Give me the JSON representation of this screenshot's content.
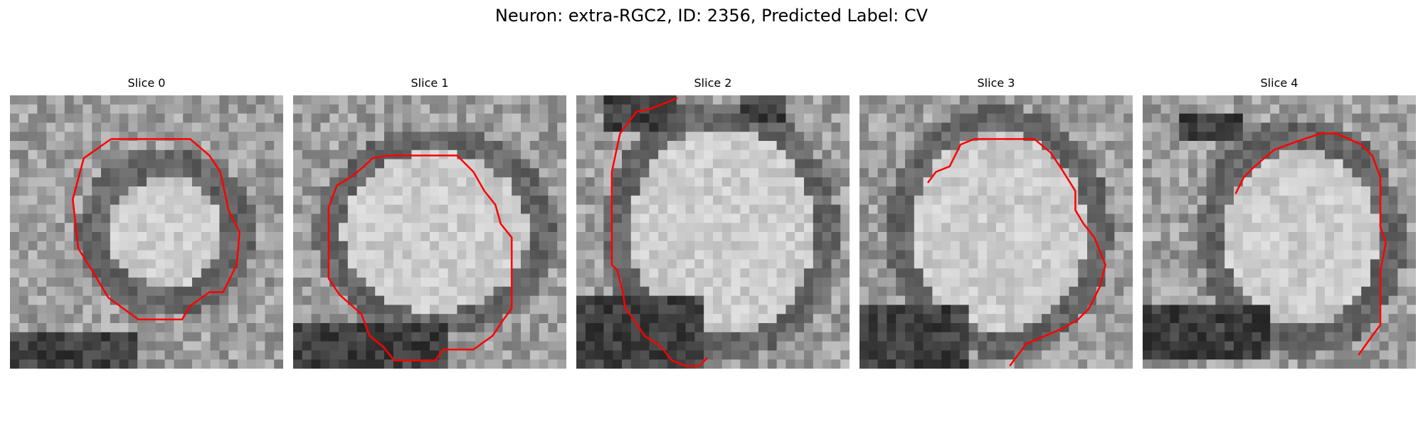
{
  "figure": {
    "title": "Neuron: extra-RGC2, ID: 2356, Predicted Label: CV"
  },
  "panels": [
    {
      "title": "Slice 0"
    },
    {
      "title": "Slice 1"
    },
    {
      "title": "Slice 2"
    },
    {
      "title": "Slice 3"
    },
    {
      "title": "Slice 4"
    }
  ],
  "colors": {
    "contour": "#ff0000",
    "background": "#ffffff"
  }
}
